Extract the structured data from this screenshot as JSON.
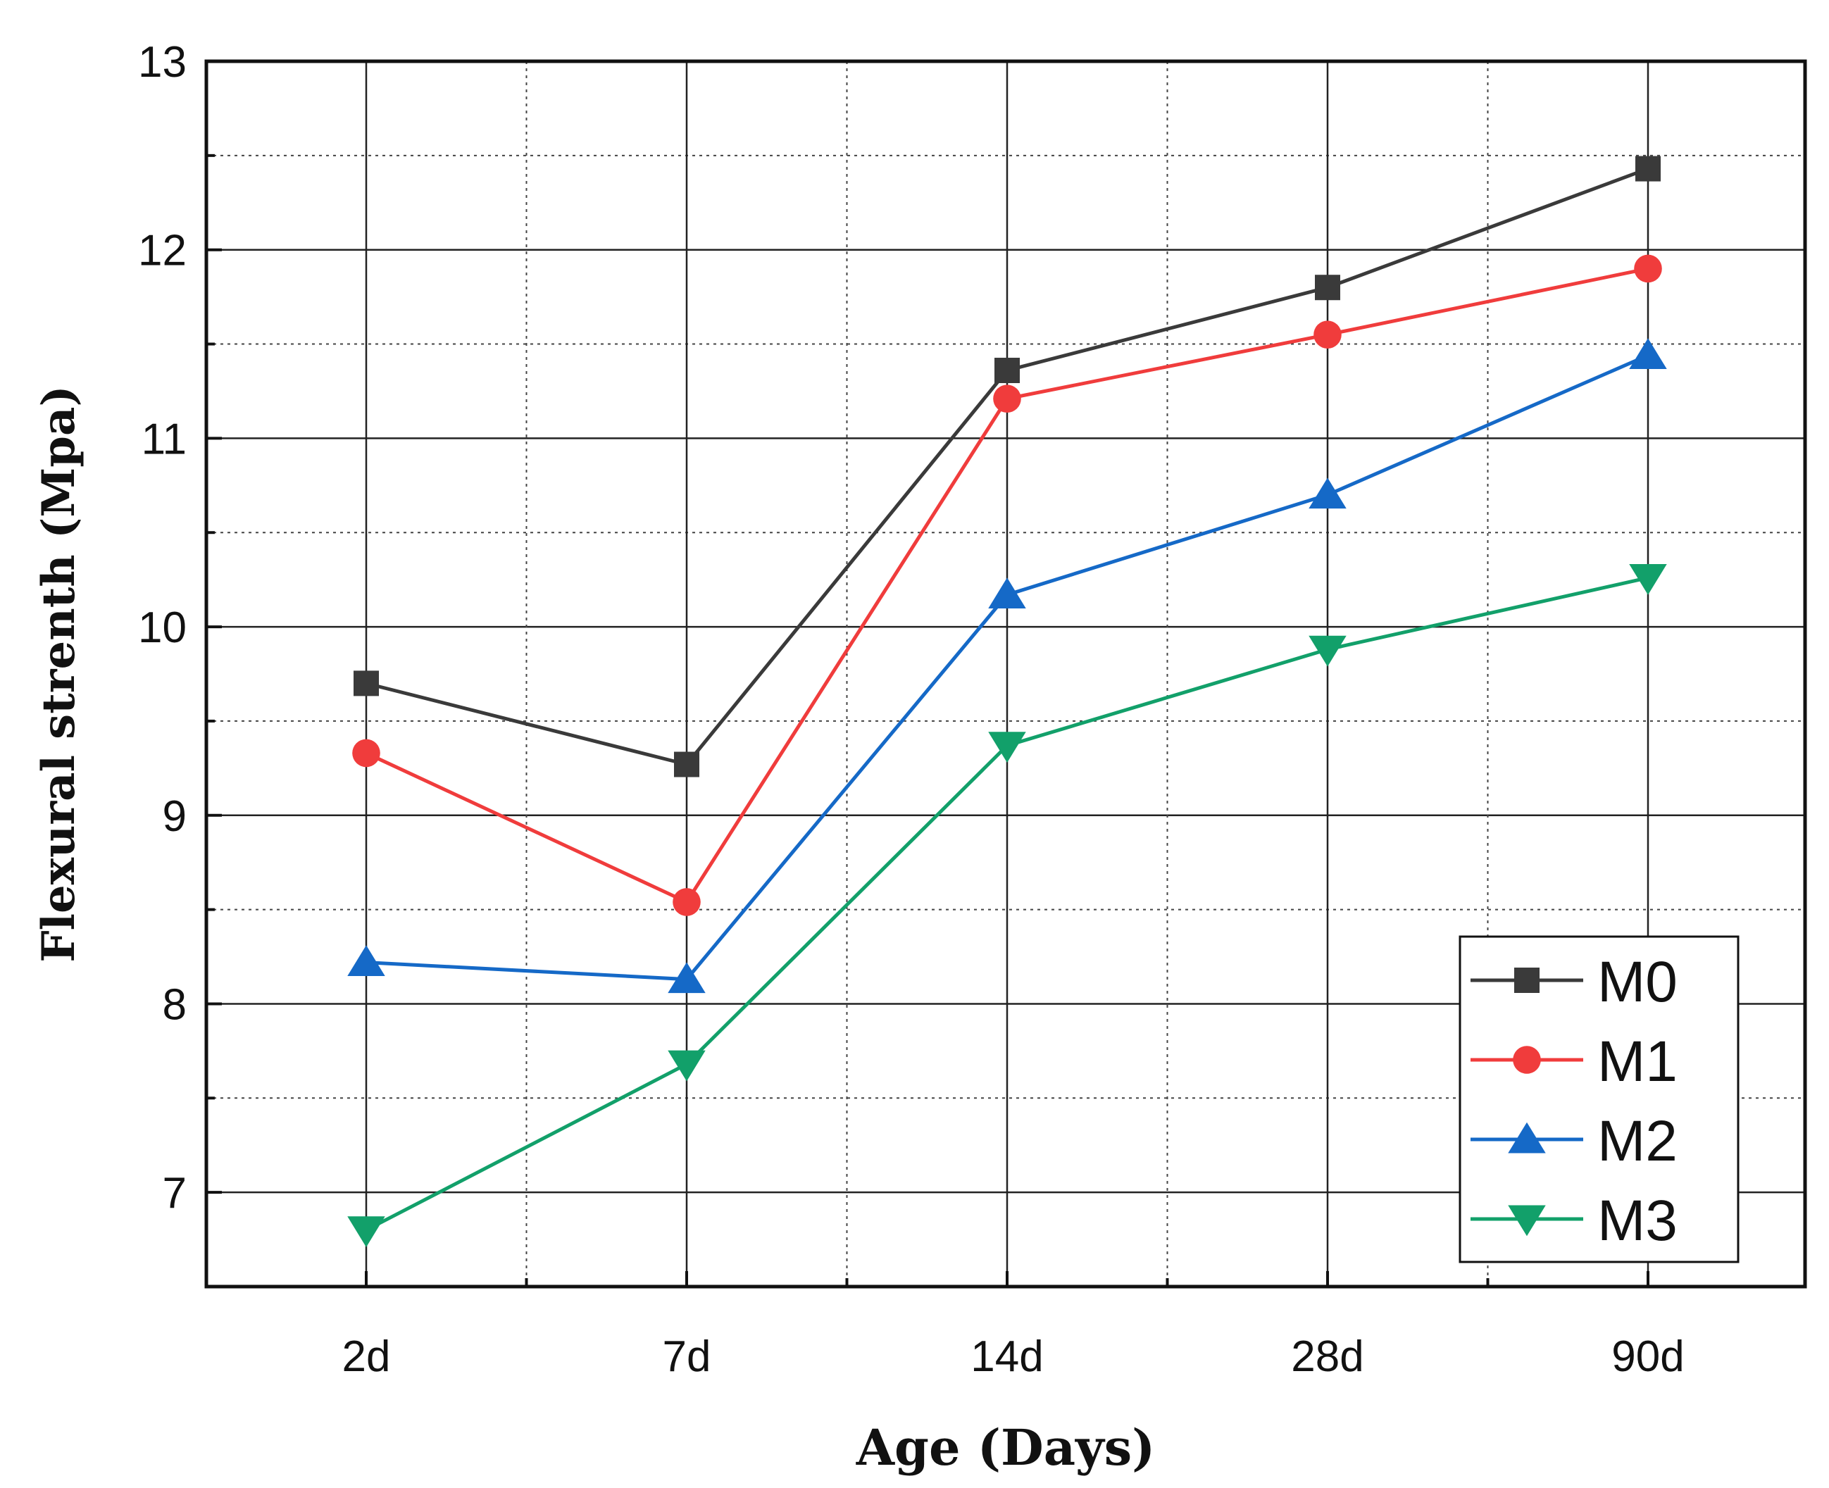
{
  "chart_data": {
    "type": "line",
    "title": "",
    "xlabel": "Age (Days)",
    "ylabel": "Flexural strenth (Mpa)",
    "categories": [
      "2d",
      "7d",
      "14d",
      "28d",
      "90d"
    ],
    "ylim": [
      6.5,
      13
    ],
    "yticks": [
      "7",
      "8",
      "9",
      "10",
      "11",
      "12",
      "13"
    ],
    "grid": true,
    "legend_position": "bottom-right",
    "series": [
      {
        "name": "M0",
        "color": "#3a3a3a",
        "marker": "square",
        "values": [
          9.7,
          9.27,
          11.36,
          11.8,
          12.43
        ]
      },
      {
        "name": "M1",
        "color": "#f03c3c",
        "marker": "circle",
        "values": [
          9.33,
          8.54,
          11.21,
          11.55,
          11.9
        ]
      },
      {
        "name": "M2",
        "color": "#1569c7",
        "marker": "triangle-up",
        "values": [
          8.22,
          8.13,
          10.17,
          10.7,
          11.44
        ]
      },
      {
        "name": "M3",
        "color": "#12a06a",
        "marker": "triangle-down",
        "values": [
          6.8,
          7.68,
          9.37,
          9.88,
          10.26
        ]
      }
    ]
  }
}
